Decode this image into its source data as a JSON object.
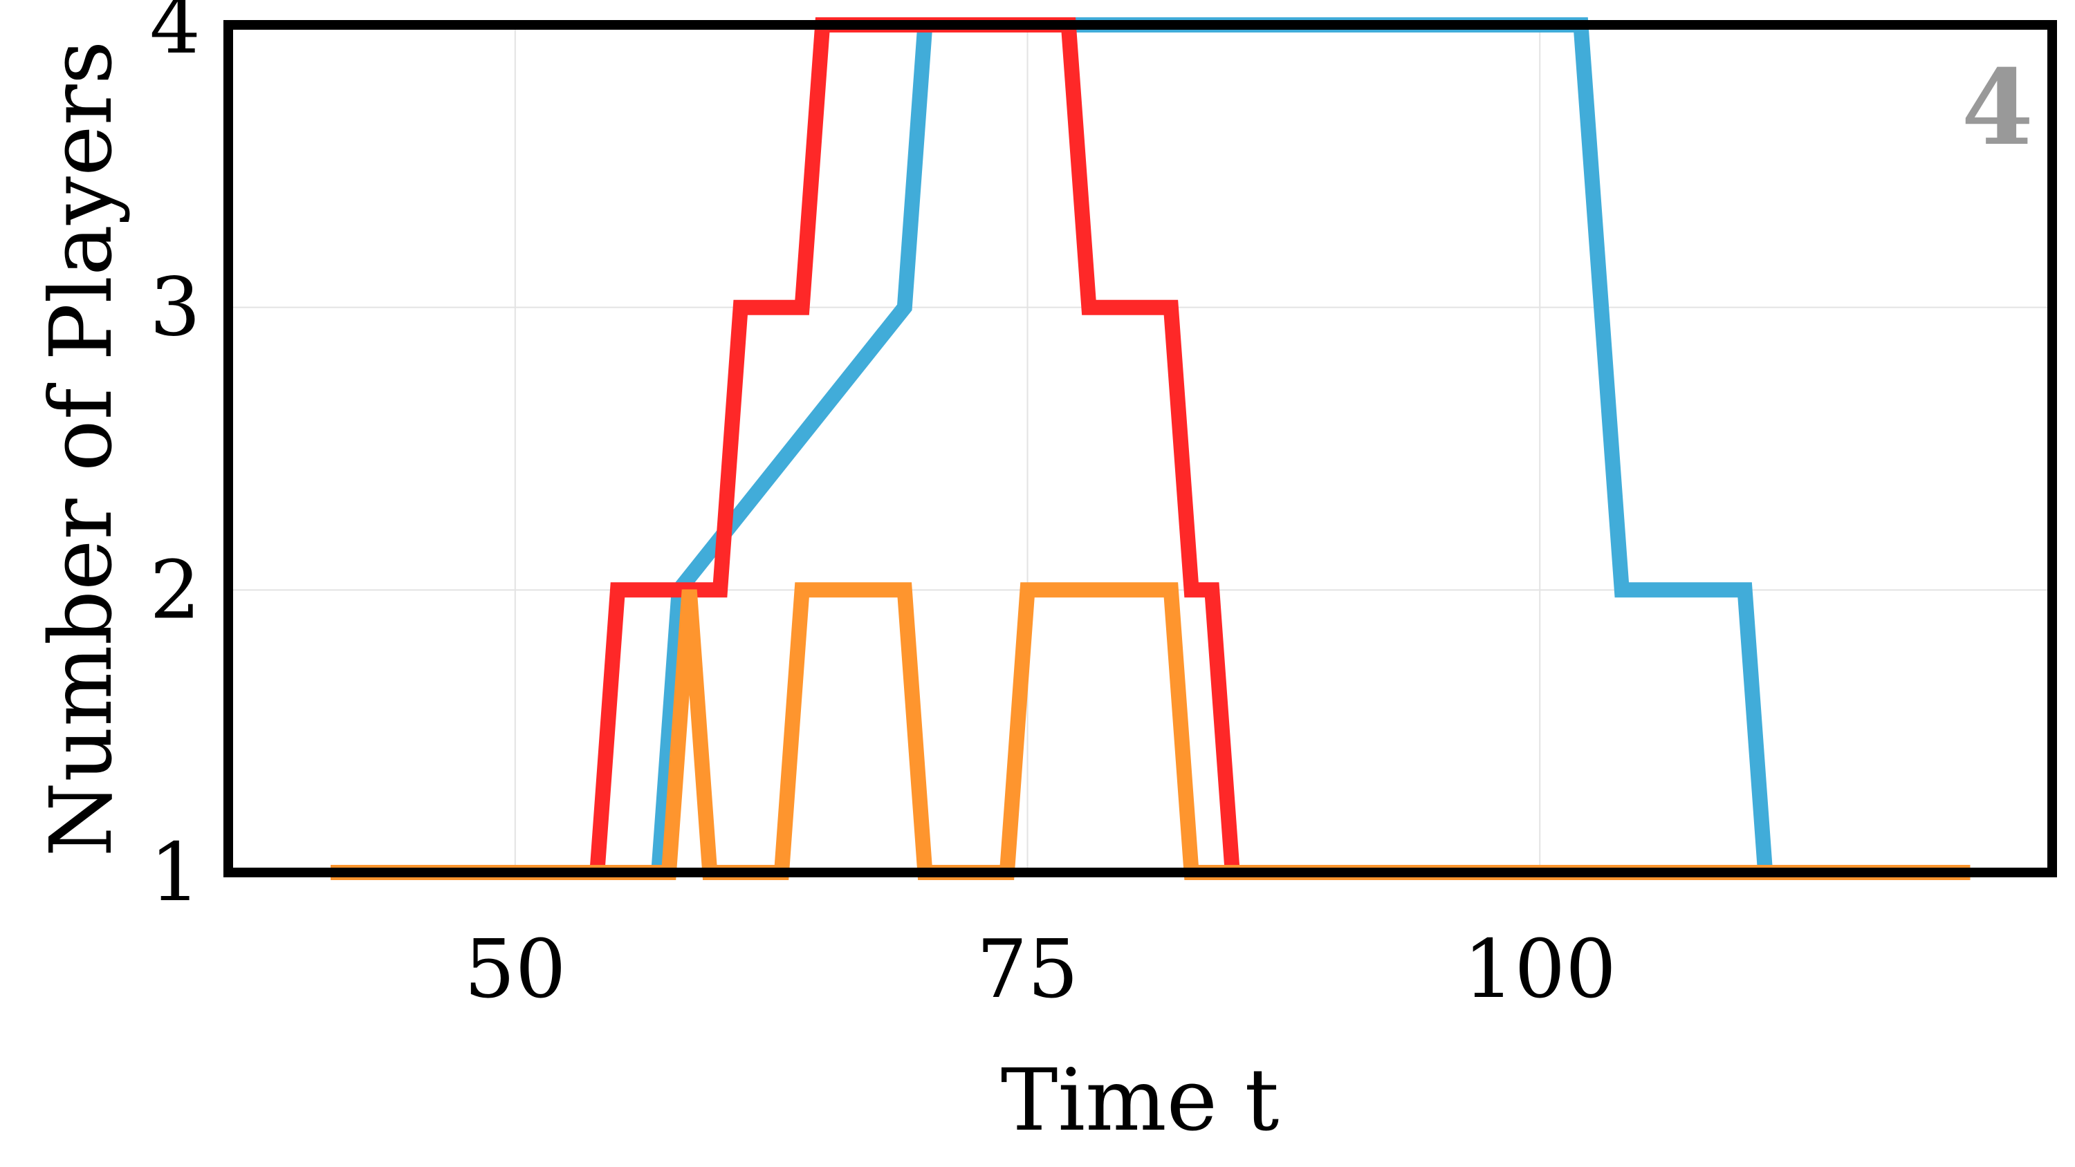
{
  "chart_data": {
    "type": "line",
    "panel_label": "4",
    "xlabel": "Time t",
    "ylabel": "Number of Players",
    "xlim": [
      36,
      125
    ],
    "ylim": [
      1,
      4
    ],
    "xticks": [
      50,
      75,
      100
    ],
    "yticks": [
      1,
      2,
      3,
      4
    ],
    "grid": true,
    "series": [
      {
        "color": "#41acd9",
        "x": [
          41,
          57,
          58,
          69,
          70,
          102,
          104,
          110,
          111,
          121
        ],
        "y": [
          1,
          1,
          2,
          3,
          4,
          4,
          2,
          2,
          1,
          1
        ]
      },
      {
        "color": "#fe2828",
        "x": [
          41,
          54,
          55,
          60,
          61,
          64,
          65,
          77,
          78,
          82,
          83,
          84,
          85,
          121
        ],
        "y": [
          1,
          1,
          2,
          2,
          3,
          3,
          4,
          4,
          3,
          3,
          2,
          2,
          1,
          1
        ]
      },
      {
        "color": "#fe952e",
        "x": [
          41,
          57.5,
          58.5,
          59.5,
          63,
          64,
          69,
          70,
          74,
          75,
          82,
          83,
          121
        ],
        "y": [
          1,
          1,
          2,
          1,
          1,
          2,
          2,
          1,
          1,
          2,
          2,
          1,
          1
        ]
      }
    ]
  }
}
